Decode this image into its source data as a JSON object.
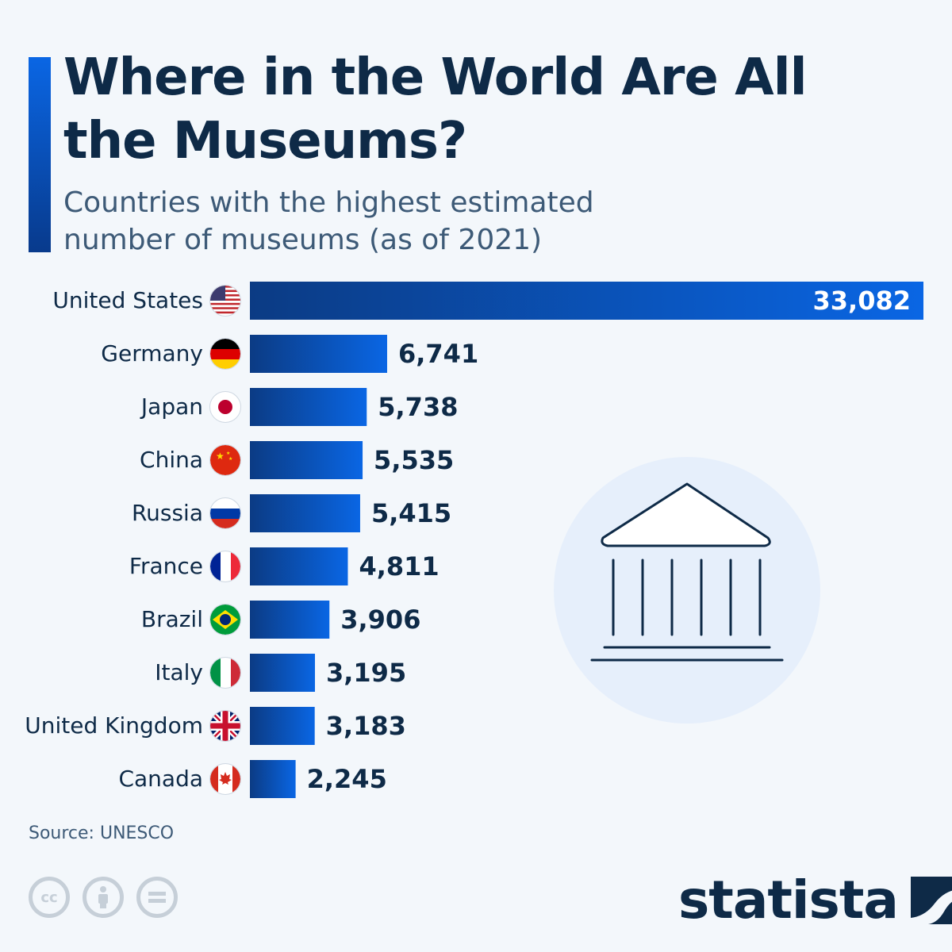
{
  "title": "Where in the World Are All the Museums?",
  "subtitle": "Countries with the highest estimated number of museums (as of 2021)",
  "source": "Source: UNESCO",
  "brand": "statista",
  "license_icons": [
    "cc-icon",
    "attribution-icon",
    "no-derivatives-icon"
  ],
  "colors": {
    "bar_light": "#0a66e4",
    "bar_dark": "#0b3b84",
    "text_dark": "#0e2a47",
    "illustration_circle": "#e6effb"
  },
  "chart_data": {
    "type": "bar",
    "orientation": "horizontal",
    "title": "Where in the World Are All the Museums?",
    "subtitle": "Countries with the highest estimated number of museums (as of 2021)",
    "categories": [
      "United States",
      "Germany",
      "Japan",
      "China",
      "Russia",
      "France",
      "Brazil",
      "Italy",
      "United Kingdom",
      "Canada"
    ],
    "values": [
      33082,
      6741,
      5738,
      5535,
      5415,
      4811,
      3906,
      3195,
      3183,
      2245
    ],
    "value_labels": [
      "33,082",
      "6,741",
      "5,738",
      "5,535",
      "5,415",
      "4,811",
      "3,906",
      "3,195",
      "3,183",
      "2,245"
    ],
    "flags": [
      "us-flag-icon",
      "germany-flag-icon",
      "japan-flag-icon",
      "china-flag-icon",
      "russia-flag-icon",
      "france-flag-icon",
      "brazil-flag-icon",
      "italy-flag-icon",
      "uk-flag-icon",
      "canada-flag-icon"
    ],
    "xlim": [
      0,
      33082
    ],
    "grid": false,
    "legend": "none"
  }
}
